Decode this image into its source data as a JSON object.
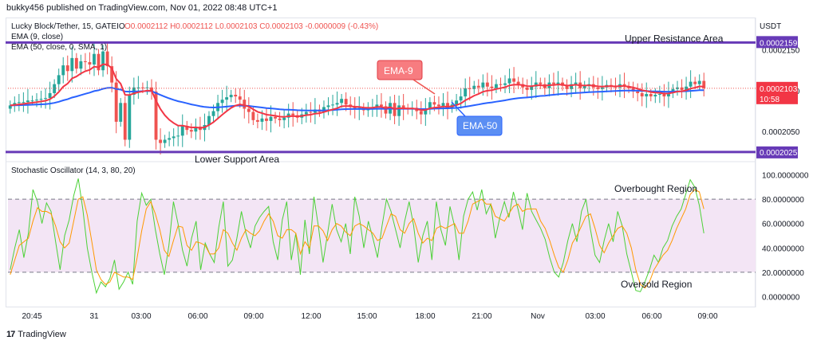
{
  "header": {
    "publish_line": "bukky456 published on TradingView.com, Nov 01, 2022 08:48 UTC+1"
  },
  "legend": {
    "symbol_line_prefix": "Lucky Block/Tether, 15, GATEIO",
    "ohlc": "O0.0002112 H0.0002112 L0.0002103 C0.0002103 -0.0000009 (-0.43%)",
    "ema9": "EMA (9, close)",
    "ema50": "EMA (50, close, 0, SMA, 1)",
    "stoch": "Stochastic Oscillator (14, 3, 80, 20)"
  },
  "annotations": {
    "upper": "Upper Resistance Area",
    "lower": "Lower Support Area",
    "ema9_callout": "EMA-9",
    "ema50_callout": "EMA-50",
    "overbought": "Overbought Region",
    "oversold": "Oversold Region"
  },
  "price_axis": {
    "currency": "USDT",
    "tick_labels": [
      "0.0002150",
      "0.0002100",
      "0.0002050"
    ],
    "resistance_label": "0.0002159",
    "support_label": "0.0002025",
    "last_price_label": "0.0002103",
    "countdown": "10:58"
  },
  "stoch_axis": {
    "tick_labels": [
      "100.0000000",
      "80.0000000",
      "60.0000000",
      "40.0000000",
      "20.0000000",
      "0.0000000"
    ]
  },
  "time_axis": {
    "labels": [
      "20:45",
      "31",
      "03:00",
      "06:00",
      "09:00",
      "12:00",
      "15:00",
      "18:00",
      "21:00",
      "Nov",
      "03:00",
      "06:00",
      "09:00"
    ]
  },
  "footer": {
    "brand": "TradingView",
    "logo": "17"
  },
  "colors": {
    "up": "#26a69a",
    "down": "#ef5350",
    "ema9": "#f23645",
    "ema50": "#2962ff",
    "levels": "#673ab7",
    "stoch_k": "#4cd137",
    "stoch_d": "#ff9800",
    "stoch_band": "#f3e5f5"
  },
  "chart_data": [
    {
      "type": "candlestick",
      "title": "Lucky Block/Tether, 15, GATEIO",
      "ylabel": "USDT",
      "ylim": [
        0.000202,
        0.0002172
      ],
      "x_ticks": [
        "20:45",
        "31",
        "03:00",
        "06:00",
        "09:00",
        "12:00",
        "15:00",
        "18:00",
        "21:00",
        "Nov",
        "03:00",
        "06:00",
        "09:00"
      ],
      "horizontal_levels": [
        {
          "name": "Upper Resistance Area",
          "value": 0.0002159
        },
        {
          "name": "Lower Support Area",
          "value": 0.0002025
        }
      ],
      "last_price": 0.0002103,
      "close_series": [
        0.0002082,
        0.0002085,
        0.0002086,
        0.0002086,
        0.0002088,
        0.0002088,
        0.0002089,
        0.000209,
        0.0002091,
        0.0002097,
        0.0002108,
        0.0002119,
        0.0002131,
        0.0002124,
        0.000214,
        0.0002127,
        0.0002136,
        0.0002135,
        0.0002132,
        0.0002145,
        0.0002125,
        0.0002148,
        0.000213,
        0.000211,
        0.0002062,
        0.0002085,
        0.000204,
        0.0002095,
        0.0002104,
        0.0002104,
        0.0002103,
        0.0002104,
        0.0002099,
        0.000204,
        0.0002036,
        0.000204,
        0.0002042,
        0.0002044,
        0.0002045,
        0.0002057,
        0.0002052,
        0.000205,
        0.0002056,
        0.0002052,
        0.0002058,
        0.0002069,
        0.0002075,
        0.0002085,
        0.0002089,
        0.0002092,
        0.0002095,
        0.0002093,
        0.0002089,
        0.0002078,
        0.0002074,
        0.0002064,
        0.0002062,
        0.0002066,
        0.0002063,
        0.0002068,
        0.0002066,
        0.0002064,
        0.0002067,
        0.0002072,
        0.000207,
        0.0002067,
        0.0002071,
        0.0002074,
        0.0002073,
        0.0002077,
        0.0002074,
        0.000208,
        0.0002082,
        0.0002083,
        0.0002085,
        0.000209,
        0.0002083,
        0.000208,
        0.0002078,
        0.0002079,
        0.0002076,
        0.0002078,
        0.000208,
        0.0002083,
        0.0002081,
        0.0002072,
        0.0002085,
        0.0002069,
        0.0002082,
        0.0002078,
        0.0002077,
        0.0002079,
        0.0002075,
        0.0002071,
        0.0002077,
        0.0002086,
        0.0002083,
        0.0002081,
        0.0002085,
        0.0002079,
        0.0002083,
        0.0002088,
        0.0002093,
        0.0002103,
        0.0002102,
        0.0002106,
        0.0002104,
        0.000211,
        0.0002105,
        0.0002103,
        0.0002108,
        0.0002107,
        0.0002109,
        0.0002115,
        0.0002111,
        0.0002108,
        0.0002104,
        0.0002101,
        0.0002105,
        0.000211,
        0.0002108,
        0.0002103,
        0.000211,
        0.0002108,
        0.000211,
        0.0002106,
        0.0002102,
        0.0002108,
        0.000211,
        0.0002103,
        0.0002106,
        0.0002108,
        0.0002104,
        0.0002102,
        0.0002104,
        0.0002107,
        0.0002106,
        0.0002104,
        0.0002108,
        0.0002105,
        0.0002103,
        0.0002099,
        0.0002097,
        0.0002093,
        0.0002096,
        0.0002093,
        0.0002095,
        0.0002096,
        0.0002093,
        0.0002097,
        0.0002102,
        0.0002104,
        0.0002101,
        0.0002105,
        0.0002111,
        0.0002108,
        0.0002112,
        0.0002103
      ]
    },
    {
      "type": "line",
      "title": "Stochastic Oscillator (14, 3, 80, 20)",
      "ylim": [
        -5,
        105
      ],
      "band": [
        20,
        80
      ],
      "y_ticks": [
        100,
        80,
        60,
        40,
        20,
        0
      ],
      "series": [
        {
          "name": "%K",
          "values": [
            22,
            40,
            55,
            32,
            52,
            88,
            78,
            60,
            77,
            70,
            45,
            22,
            50,
            63,
            83,
            97,
            72,
            40,
            20,
            3,
            12,
            8,
            15,
            30,
            6,
            12,
            20,
            10,
            62,
            85,
            75,
            80,
            55,
            35,
            18,
            42,
            78,
            60,
            38,
            25,
            48,
            62,
            22,
            44,
            35,
            28,
            57,
            78,
            25,
            30,
            48,
            70,
            52,
            40,
            58,
            65,
            70,
            74,
            45,
            30,
            63,
            78,
            30,
            52,
            18,
            63,
            35,
            82,
            57,
            28,
            52,
            76,
            55,
            45,
            60,
            35,
            82,
            66,
            40,
            62,
            48,
            32,
            58,
            80,
            70,
            55,
            40,
            62,
            78,
            58,
            28,
            50,
            62,
            30,
            78,
            55,
            42,
            74,
            58,
            30,
            66,
            80,
            86,
            71,
            88,
            68,
            76,
            48,
            65,
            78,
            65,
            86,
            72,
            55,
            85,
            70,
            63,
            56,
            47,
            32,
            20,
            16,
            28,
            46,
            60,
            45,
            70,
            80,
            55,
            34,
            28,
            46,
            60,
            45,
            70,
            58,
            35,
            20,
            5,
            4,
            12,
            22,
            34,
            28,
            40,
            46,
            58,
            66,
            72,
            84,
            96,
            90,
            75,
            52
          ]
        },
        {
          "name": "%D",
          "values": [
            18,
            30,
            42,
            45,
            48,
            62,
            73,
            70,
            70,
            68,
            58,
            45,
            40,
            44,
            62,
            80,
            82,
            67,
            45,
            22,
            14,
            10,
            12,
            20,
            18,
            16,
            16,
            14,
            32,
            54,
            72,
            78,
            68,
            55,
            38,
            33,
            46,
            58,
            57,
            42,
            38,
            45,
            44,
            42,
            35,
            35,
            40,
            55,
            52,
            44,
            38,
            48,
            55,
            52,
            50,
            54,
            62,
            68,
            62,
            50,
            48,
            55,
            55,
            52,
            35,
            45,
            40,
            58,
            58,
            54,
            46,
            55,
            60,
            58,
            53,
            50,
            58,
            60,
            58,
            55,
            52,
            46,
            48,
            58,
            68,
            66,
            55,
            52,
            60,
            64,
            52,
            44,
            48,
            46,
            56,
            58,
            56,
            58,
            60,
            52,
            52,
            62,
            76,
            78,
            80,
            76,
            76,
            66,
            64,
            62,
            68,
            74,
            76,
            70,
            72,
            72,
            72,
            62,
            56,
            46,
            34,
            24,
            20,
            30,
            44,
            50,
            58,
            66,
            68,
            56,
            42,
            36,
            44,
            50,
            56,
            58,
            52,
            40,
            22,
            10,
            7,
            12,
            22,
            28,
            34,
            38,
            46,
            56,
            64,
            72,
            84,
            88,
            86,
            72
          ]
        }
      ]
    }
  ]
}
